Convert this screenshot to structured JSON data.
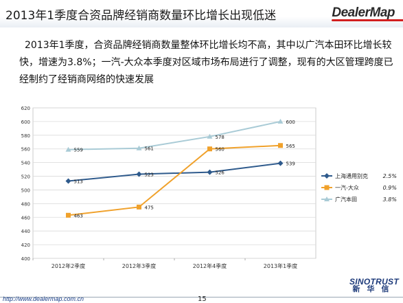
{
  "header": {
    "title": "2013年1季度合资品牌经销商数量环比增长出现低迷",
    "logo_text": "DealerMap"
  },
  "body": {
    "paragraph": "2013年1季度，合资品牌经销商数量整体环比增长均不高，其中以广汽本田环比增长较快，增速为3.8%；一汽-大众本季度对区域市场布局进行了调整，现有的大区管理跨度已经制约了经销商网络的快速发展"
  },
  "chart_data": {
    "type": "line",
    "categories": [
      "2012年2季度",
      "2012年3季度",
      "2012年4季度",
      "2013年1季度"
    ],
    "ylim": [
      400,
      620
    ],
    "yticks": [
      "400",
      "420",
      "440",
      "460",
      "480",
      "500",
      "520",
      "540",
      "560",
      "580",
      "600",
      "620"
    ],
    "grid": true,
    "legend_position": "right",
    "series": [
      {
        "name": "上海通用别克",
        "growth": "2.5%",
        "color": "#2e5a8c",
        "marker": "diamond",
        "values": [
          513,
          523,
          526,
          539
        ],
        "labels": [
          "513",
          "523",
          "526",
          "539"
        ]
      },
      {
        "name": "一汽-大众",
        "growth": "0.9%",
        "color": "#f0a12b",
        "marker": "square",
        "values": [
          463,
          475,
          560,
          565
        ],
        "labels": [
          "463",
          "475",
          "560",
          "565"
        ]
      },
      {
        "name": "广汽本田",
        "growth": "3.8%",
        "color": "#a9cbd6",
        "marker": "triangle",
        "values": [
          559,
          561,
          578,
          600
        ],
        "labels": [
          "559",
          "561",
          "578",
          "600"
        ]
      }
    ]
  },
  "footer": {
    "url": "http://www.dealermap.com.cn",
    "page_number": "15",
    "brand_en": "SINOTRUST",
    "brand_cn": "新华信"
  }
}
